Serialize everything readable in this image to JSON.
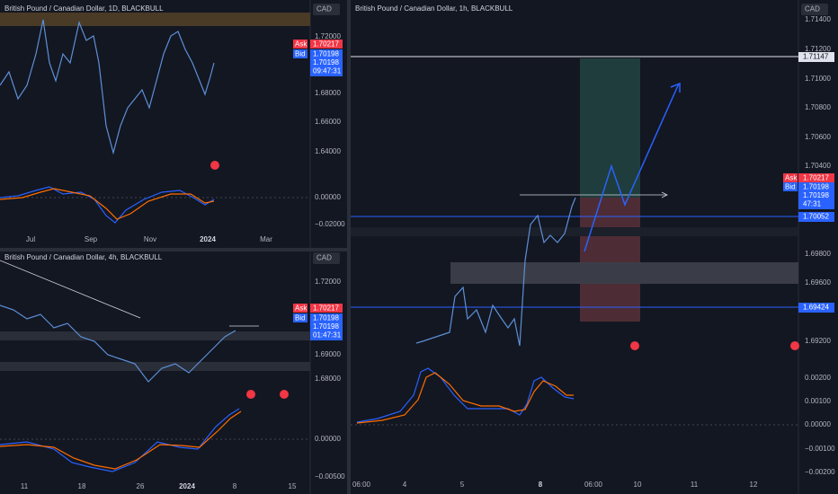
{
  "panes": [
    {
      "title": "British Pound / Canadian Dollar, 1D, BLACKBULL",
      "currency": "CAD",
      "price_labels": [
        "1.72000",
        "1.68000",
        "1.66000",
        "1.64000",
        "0.00000",
        "−0.02000"
      ],
      "ask": {
        "label": "Ask",
        "price": "1.70217"
      },
      "bid": {
        "label": "Bid",
        "price": "1.70198"
      },
      "last": {
        "price": "1.70198",
        "countdown": "09:47:31"
      },
      "time_labels": [
        "Jul",
        "Sep",
        "Nov",
        "2024",
        "Mar"
      ]
    },
    {
      "title": "British Pound / Canadian Dollar, 4h, BLACKBULL",
      "currency": "CAD",
      "price_labels": [
        "1.72000",
        "1.69000",
        "1.68000",
        "0.00000",
        "−0.00500"
      ],
      "ask": {
        "label": "Ask",
        "price": "1.70217"
      },
      "bid": {
        "label": "Bid",
        "price": "1.70198"
      },
      "last": {
        "price": "1.70198",
        "countdown": "01:47:31"
      },
      "time_labels": [
        "11",
        "18",
        "26",
        "2024",
        "8",
        "15"
      ]
    },
    {
      "title": "British Pound / Canadian Dollar, 1h, BLACKBULL",
      "currency": "CAD",
      "price_labels": [
        "1.71400",
        "1.71200",
        "1.71000",
        "1.70800",
        "1.70600",
        "1.70400",
        "1.69800",
        "1.69600",
        "1.69200",
        "0.00200",
        "0.00100",
        "0.00000",
        "−0.00100",
        "−0.00200"
      ],
      "level_labels": [
        "1.71147",
        "1.70052",
        "1.69424"
      ],
      "ask": {
        "label": "Ask",
        "price": "1.70217"
      },
      "bid": {
        "label": "Bid",
        "price": "1.70198"
      },
      "last": {
        "price": "1.70198",
        "countdown": "47:31"
      },
      "time_labels": [
        "06:00",
        "4",
        "5",
        "8",
        "06:00",
        "10",
        "11",
        "12"
      ]
    }
  ]
}
